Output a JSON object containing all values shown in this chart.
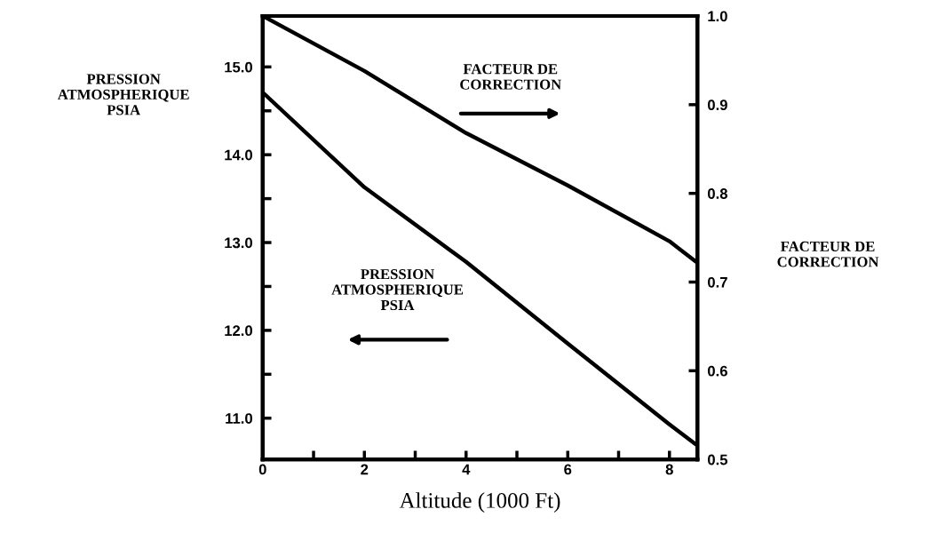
{
  "chart_data": {
    "type": "line",
    "xlabel": "Altitude (1000 Ft)",
    "ylabel": "PRESSION\nATMOSPHERIQUE\nPSIA",
    "y2label": "FACTEUR DE\nCORRECTION",
    "x": [
      0,
      2,
      4,
      6,
      8,
      8.5
    ],
    "series": [
      {
        "color": "#000000",
        "values": [
          14.71,
          13.63,
          12.78,
          11.85,
          10.93,
          10.71
        ]
      },
      {
        "color": "#000000",
        "axis": "y2",
        "values": [
          1.0,
          0.938,
          0.868,
          0.809,
          0.746,
          0.724
        ]
      }
    ],
    "xlim": [
      0,
      8.55
    ],
    "xticks": [
      0,
      {
        "value": 1,
        "label": null
      },
      2,
      {
        "value": 3,
        "label": null
      },
      4,
      {
        "value": 5,
        "label": null
      },
      6,
      {
        "value": 7,
        "label": null
      },
      8
    ],
    "ylim": [
      10.53,
      15.58
    ],
    "yticks": [
      {
        "value": 11,
        "label": "11.0"
      },
      {
        "value": 11.5,
        "label": null
      },
      {
        "value": 12,
        "label": "12.0"
      },
      {
        "value": 12.5,
        "label": null
      },
      {
        "value": 13,
        "label": "13.0"
      },
      {
        "value": 13.5,
        "label": null
      },
      {
        "value": 14,
        "label": "14.0"
      },
      {
        "value": 14.5,
        "label": null
      },
      {
        "value": 15,
        "label": "15.0"
      }
    ],
    "y2lim": [
      0.5,
      1.0
    ],
    "y2ticks": [
      0.5,
      0.6,
      0.7,
      0.8,
      0.9,
      {
        "value": 1,
        "label": "1.0"
      }
    ],
    "annotations": [
      "FACTEUR DE\nCORRECTION",
      "PRESSION\nATMOSPHERIQUE\nPSIA"
    ],
    "grid": false,
    "legend": false,
    "marker": "none",
    "line_style": "solid"
  }
}
